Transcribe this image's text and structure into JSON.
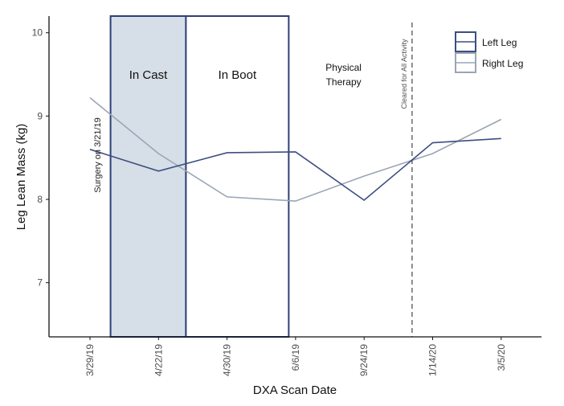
{
  "chart_data": {
    "type": "line",
    "xlabel": "DXA Scan Date",
    "ylabel": "Leg Lean Mass (kg)",
    "categories": [
      "3/29/19",
      "4/22/19",
      "4/30/19",
      "6/6/19",
      "9/24/19",
      "1/14/20",
      "3/5/20"
    ],
    "ylim": [
      6.35,
      10.2
    ],
    "yticks": [
      7,
      8,
      9,
      10
    ],
    "grid": false,
    "legend_position": "top-right",
    "series": [
      {
        "name": "Left Leg",
        "color": "#3e4f80",
        "values": [
          8.6,
          8.34,
          8.56,
          8.57,
          7.99,
          8.68,
          8.73
        ]
      },
      {
        "name": "Right Leg",
        "color": "#9aa5b5",
        "values": [
          9.22,
          8.55,
          8.03,
          7.98,
          8.28,
          8.55,
          8.96
        ]
      }
    ],
    "regions": [
      {
        "label": "In Cast",
        "start": 0.3,
        "end": 1.4,
        "fill": "#d6dee7"
      },
      {
        "label": "In Boot",
        "start": 1.4,
        "end": 2.9,
        "fill": "#ffffff"
      }
    ],
    "phase_label": {
      "line1": "Physical",
      "line2": "Therapy",
      "x": 3.7
    },
    "surgery_annotation": {
      "text": "Surgery on 3/21/19",
      "x": 0.15
    },
    "cleared_annotation": {
      "text": "Cleared for All Activity",
      "x": 4.7
    }
  }
}
